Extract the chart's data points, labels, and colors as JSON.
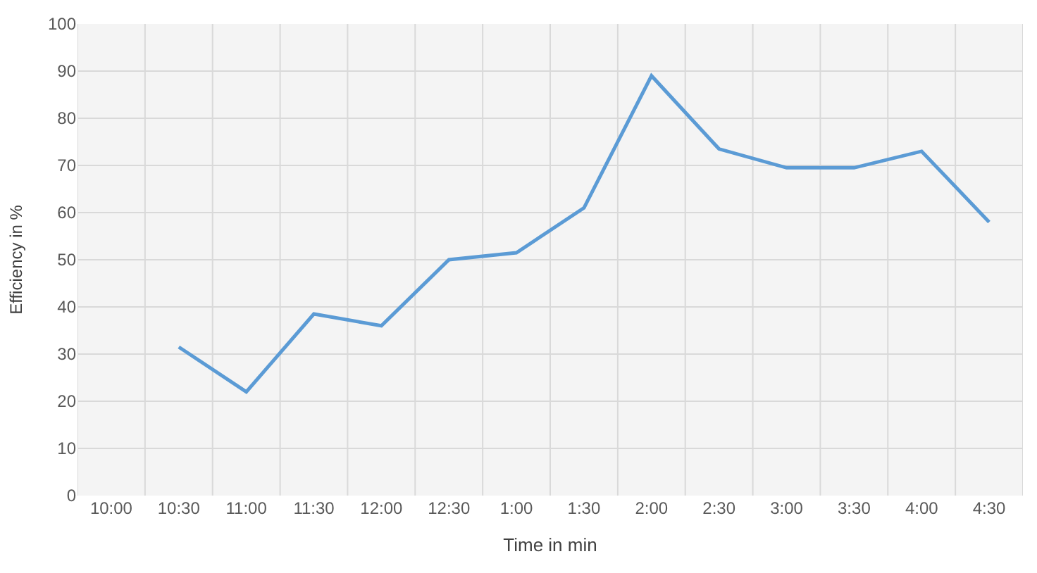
{
  "chart_data": {
    "type": "line",
    "xlabel": "Time in min",
    "ylabel": "Efficiency in %",
    "categories": [
      "10:00",
      "10:30",
      "11:00",
      "11:30",
      "12:00",
      "12:30",
      "1:00",
      "1:30",
      "2:00",
      "2:30",
      "3:00",
      "3:30",
      "4:00",
      "4:30"
    ],
    "series": [
      {
        "color": "#5b9bd5",
        "values": [
          null,
          31.5,
          22,
          38.5,
          36,
          50,
          51.5,
          61,
          89,
          73.5,
          69.5,
          69.5,
          73,
          58
        ]
      }
    ],
    "ylim": [
      0,
      100
    ],
    "yticks": [
      0,
      10,
      20,
      30,
      40,
      50,
      60,
      70,
      80,
      90,
      100
    ],
    "grid": true,
    "marker": "none",
    "line_style": "solid"
  }
}
